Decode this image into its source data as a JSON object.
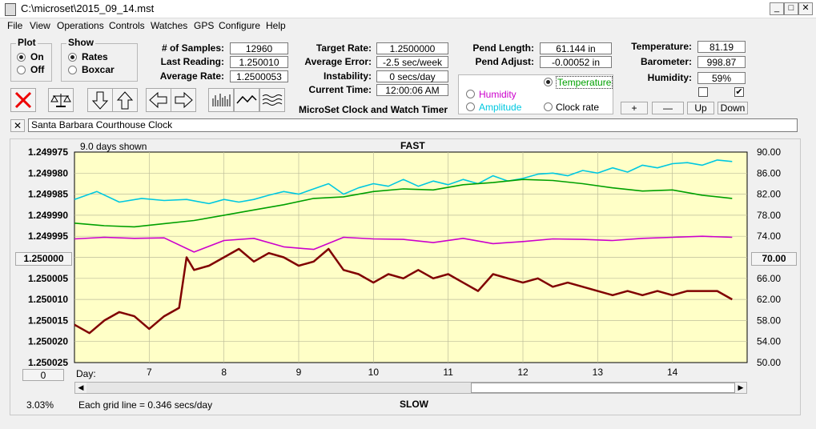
{
  "window": {
    "title": "C:\\microset\\2015_09_14.mst",
    "minimize": "_",
    "maximize": "□",
    "close": "✕"
  },
  "menu": [
    "File",
    "View",
    "Operations",
    "Controls",
    "Watches",
    "GPS",
    "Configure",
    "Help"
  ],
  "plot_group": {
    "title": "Plot",
    "on_label": "On",
    "off_label": "Off",
    "selected": "On"
  },
  "show_group": {
    "title": "Show",
    "rates_label": "Rates",
    "boxcar_label": "Boxcar",
    "selected": "Rates"
  },
  "stats": {
    "samples_label": "# of Samples:",
    "samples": "12960",
    "last_reading_label": "Last Reading:",
    "last_reading": "1.250010",
    "average_rate_label": "Average Rate:",
    "average_rate": "1.2500053",
    "target_rate_label": "Target Rate:",
    "target_rate": "1.2500000",
    "average_error_label": "Average Error:",
    "average_error": "-2.5 sec/week",
    "instability_label": "Instability:",
    "instability": "0 secs/day",
    "current_time_label": "Current Time:",
    "current_time": "12:00:06 AM",
    "pend_length_label": "Pend Length:",
    "pend_length": "61.144 in",
    "pend_adjust_label": "Pend Adjust:",
    "pend_adjust": "-0.00052 in",
    "temperature_label": "Temperature:",
    "temperature": "81.19",
    "barometer_label": "Barometer:",
    "barometer": "998.87",
    "humidity_label": "Humidity:",
    "humidity": "59%"
  },
  "app_caption": "MicroSet Clock and Watch Timer",
  "aux_options": {
    "temperature": "Temperature",
    "humidity": "Humidity",
    "amplitude": "Amplitude",
    "clock_rate": "Clock rate",
    "selected": "Temperature",
    "colors": {
      "temperature": "#00a000",
      "humidity": "#cc00cc",
      "amplitude": "#00c8e0",
      "clock_rate": "#000000"
    }
  },
  "aux_buttons": {
    "plus": "+",
    "minus": "—",
    "up": "Up",
    "down": "Down"
  },
  "checkboxes": [
    {
      "checked": false,
      "mark": ""
    },
    {
      "checked": true,
      "mark": "✔"
    }
  ],
  "clock_name": {
    "close": "✕",
    "value": "Santa Barbara Courthouse Clock"
  },
  "plot": {
    "days_shown": "9.0 days shown",
    "fast_label": "FAST",
    "slow_label": "SLOW",
    "left_center_button": "1.250000",
    "right_center_button": "70.00",
    "bottom_left_button": "0",
    "percent": "3.03%",
    "grid_note": "Each grid line = 0.346 secs/day",
    "day_label": "Day:"
  },
  "chart_data": {
    "type": "line",
    "x_label": "Day:",
    "x_ticks": [
      "7",
      "8",
      "9",
      "10",
      "11",
      "12",
      "13",
      "14"
    ],
    "x_range": [
      6.0,
      15.0
    ],
    "y_left_ticks": [
      "1.249975",
      "1.249980",
      "1.249985",
      "1.249990",
      "1.249995",
      "1.250000",
      "1.250005",
      "1.250010",
      "1.250015",
      "1.250020",
      "1.250025"
    ],
    "y_left_range": [
      1.249975,
      1.250025
    ],
    "y_left_inverted": true,
    "y_right_ticks": [
      "90.00",
      "86.00",
      "82.00",
      "78.00",
      "74.00",
      "70.00",
      "66.00",
      "62.00",
      "58.00",
      "54.00",
      "50.00"
    ],
    "y_right_range": [
      50,
      90
    ],
    "grid": true,
    "series": [
      {
        "name": "Clock rate",
        "axis": "left",
        "color": "#800000",
        "x": [
          6.0,
          6.2,
          6.4,
          6.6,
          6.8,
          7.0,
          7.2,
          7.4,
          7.5,
          7.6,
          7.8,
          8.0,
          8.2,
          8.4,
          8.6,
          8.8,
          9.0,
          9.2,
          9.4,
          9.6,
          9.8,
          10.0,
          10.2,
          10.4,
          10.6,
          10.8,
          11.0,
          11.2,
          11.4,
          11.6,
          11.8,
          12.0,
          12.2,
          12.4,
          12.6,
          12.8,
          13.0,
          13.2,
          13.4,
          13.6,
          13.8,
          14.0,
          14.2,
          14.4,
          14.6,
          14.8
        ],
        "y": [
          1.250016,
          1.250018,
          1.250015,
          1.250013,
          1.250014,
          1.250017,
          1.250014,
          1.250012,
          1.25,
          1.250003,
          1.250002,
          1.25,
          1.249998,
          1.250001,
          1.249999,
          1.25,
          1.250002,
          1.250001,
          1.249998,
          1.250003,
          1.250004,
          1.250006,
          1.250004,
          1.250005,
          1.250003,
          1.250005,
          1.250004,
          1.250006,
          1.250008,
          1.250004,
          1.250005,
          1.250006,
          1.250005,
          1.250007,
          1.250006,
          1.250007,
          1.250008,
          1.250009,
          1.250008,
          1.250009,
          1.250008,
          1.250009,
          1.250008,
          1.250008,
          1.250008,
          1.25001
        ]
      },
      {
        "name": "Temperature",
        "axis": "right",
        "color": "#00a000",
        "x": [
          6.0,
          6.4,
          6.8,
          7.2,
          7.6,
          8.0,
          8.4,
          8.8,
          9.2,
          9.6,
          10.0,
          10.4,
          10.8,
          11.2,
          11.6,
          12.0,
          12.4,
          12.8,
          13.2,
          13.6,
          14.0,
          14.4,
          14.8
        ],
        "y": [
          76.5,
          76.0,
          75.8,
          76.4,
          77.0,
          78.0,
          79.0,
          80.0,
          81.2,
          81.5,
          82.5,
          83.0,
          82.8,
          83.8,
          84.2,
          84.8,
          84.6,
          84.0,
          83.2,
          82.6,
          82.8,
          81.8,
          81.2
        ]
      },
      {
        "name": "Humidity",
        "axis": "right",
        "color": "#cc00cc",
        "x": [
          6.0,
          6.4,
          6.8,
          7.2,
          7.6,
          8.0,
          8.4,
          8.8,
          9.2,
          9.6,
          10.0,
          10.4,
          10.8,
          11.2,
          11.6,
          12.0,
          12.4,
          12.8,
          13.2,
          13.6,
          14.0,
          14.4,
          14.8
        ],
        "y": [
          73.5,
          73.8,
          73.6,
          73.7,
          71.0,
          73.2,
          73.6,
          72.0,
          71.5,
          73.8,
          73.5,
          73.4,
          72.8,
          73.6,
          72.6,
          73.0,
          73.5,
          73.4,
          73.2,
          73.6,
          73.8,
          74.0,
          73.8
        ]
      },
      {
        "name": "Amplitude",
        "axis": "right",
        "color": "#00c8e0",
        "x": [
          6.0,
          6.3,
          6.6,
          6.9,
          7.2,
          7.5,
          7.8,
          8.0,
          8.2,
          8.4,
          8.6,
          8.8,
          9.0,
          9.2,
          9.4,
          9.6,
          9.8,
          10.0,
          10.2,
          10.4,
          10.6,
          10.8,
          11.0,
          11.2,
          11.4,
          11.6,
          11.8,
          12.0,
          12.2,
          12.4,
          12.6,
          12.8,
          13.0,
          13.2,
          13.4,
          13.6,
          13.8,
          14.0,
          14.2,
          14.4,
          14.6,
          14.8
        ],
        "y": [
          81.0,
          82.5,
          80.5,
          81.2,
          80.8,
          81.0,
          80.2,
          81.0,
          80.5,
          81.0,
          81.8,
          82.5,
          82.0,
          83.0,
          84.0,
          82.0,
          83.2,
          84.0,
          83.5,
          84.8,
          83.5,
          84.5,
          83.8,
          84.8,
          84.0,
          85.5,
          84.5,
          85.0,
          85.8,
          86.0,
          85.5,
          86.5,
          86.0,
          87.0,
          86.2,
          87.5,
          87.0,
          87.8,
          88.0,
          87.5,
          88.5,
          88.2
        ]
      }
    ]
  }
}
